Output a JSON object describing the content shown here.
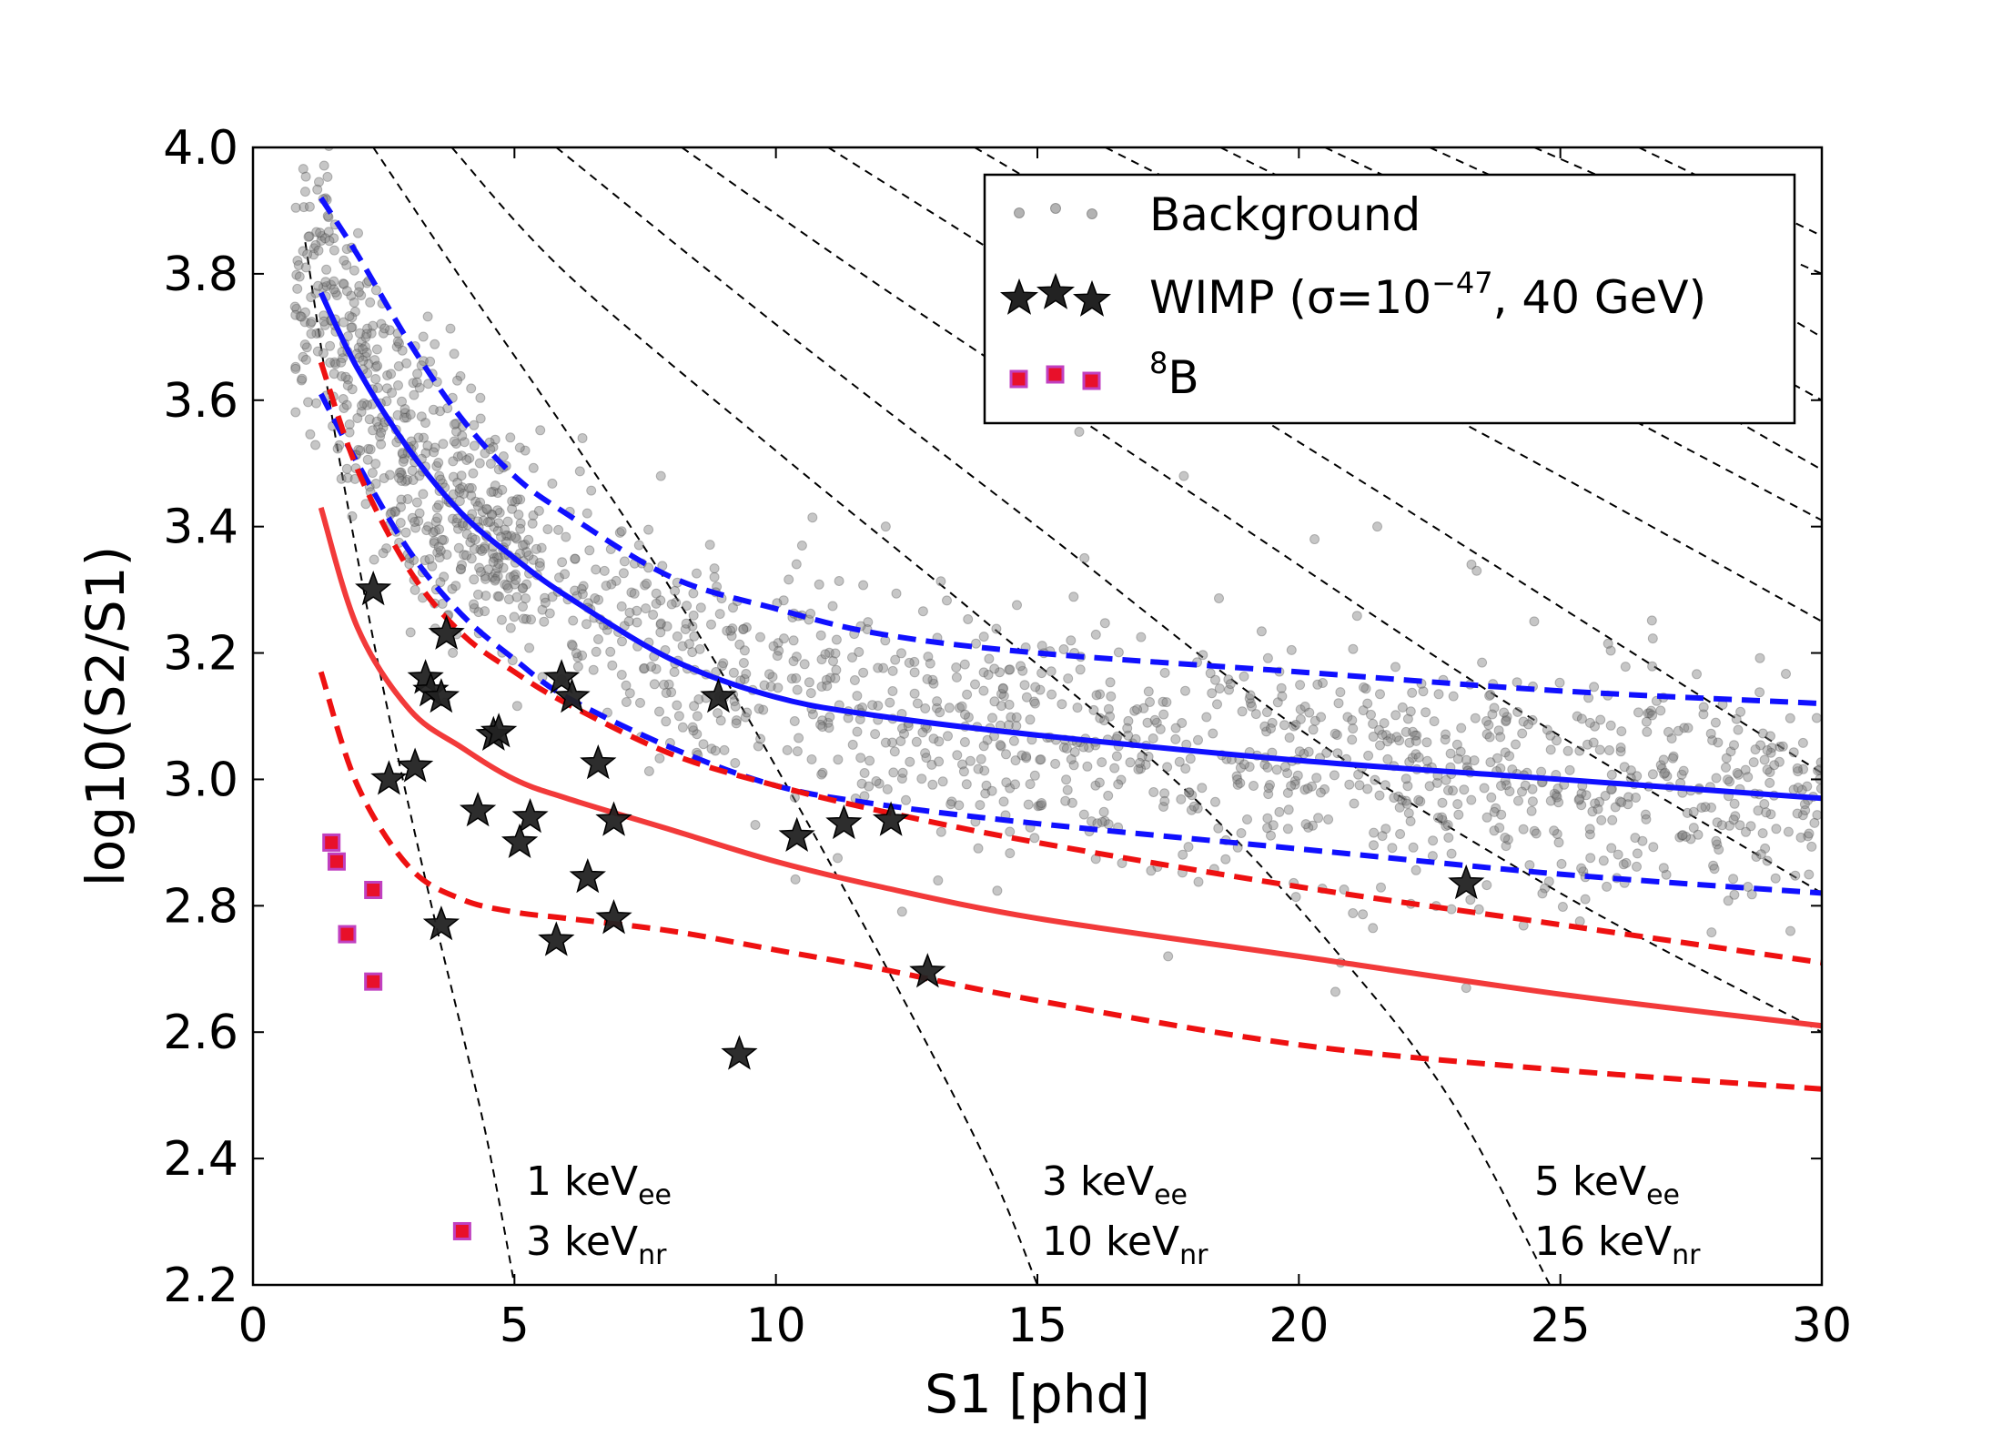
{
  "chart_data": {
    "type": "scatter",
    "xlabel": "S1 [phd]",
    "ylabel": "log10(S2/S1)",
    "xlim": [
      0,
      30
    ],
    "ylim": [
      2.2,
      4.0
    ],
    "x_ticks": [
      0,
      5,
      10,
      15,
      20,
      25,
      30
    ],
    "y_ticks": [
      2.2,
      2.4,
      2.6,
      2.8,
      3.0,
      3.2,
      3.4,
      3.6,
      3.8,
      4.0
    ],
    "x_tick_labels": [
      "0",
      "5",
      "10",
      "15",
      "20",
      "25",
      "30"
    ],
    "y_tick_labels": [
      "2.2",
      "2.4",
      "2.6",
      "2.8",
      "3.0",
      "3.2",
      "3.4",
      "3.6",
      "3.8",
      "4.0"
    ],
    "grid": false,
    "legend": {
      "placement": "top-right",
      "entries": [
        {
          "label": "Background",
          "marker": "circle",
          "color": "#808080"
        },
        {
          "label": "WIMP (σ=10",
          "label_superscript": "−47",
          "label_suffix": ", 40 GeV)",
          "marker": "star",
          "color": "#222222"
        },
        {
          "label": "B",
          "label_presuperscript": "8",
          "marker": "square",
          "color": "#e8102a",
          "edge_color": "#c040c0"
        }
      ]
    },
    "colors": {
      "er_band": "#1010ff",
      "nr_band": "#f23a3a",
      "nr_band_dashed": "#ee1111",
      "contour": "#000000",
      "background_points": "#808080",
      "wimp": "#222222",
      "b8_fill": "#e8102a",
      "b8_edge": "#c040c0"
    },
    "background_generation": {
      "count": 1700,
      "x_range": [
        0.8,
        30
      ],
      "y_spread_sigma": 0.09,
      "note_visible": false
    },
    "series": [
      {
        "name": "ER band median",
        "style": "solid",
        "color": "#1010ff",
        "x": [
          1.3,
          2,
          3,
          4,
          5,
          6,
          8,
          10,
          12,
          15,
          20,
          25,
          30
        ],
        "y": [
          3.77,
          3.65,
          3.52,
          3.42,
          3.35,
          3.29,
          3.19,
          3.13,
          3.1,
          3.07,
          3.03,
          3.0,
          2.97
        ]
      },
      {
        "name": "ER band upper",
        "style": "dashed",
        "color": "#1010ff",
        "x": [
          1.3,
          2,
          3,
          4,
          5,
          6,
          8,
          10,
          12,
          15,
          20,
          25,
          30
        ],
        "y": [
          3.92,
          3.83,
          3.69,
          3.57,
          3.48,
          3.42,
          3.32,
          3.27,
          3.23,
          3.2,
          3.17,
          3.14,
          3.12
        ]
      },
      {
        "name": "ER band lower",
        "style": "dashed",
        "color": "#1010ff",
        "x": [
          1.3,
          2,
          3,
          4,
          5,
          6,
          8,
          10,
          12,
          15,
          20,
          25,
          30
        ],
        "y": [
          3.61,
          3.5,
          3.36,
          3.26,
          3.19,
          3.13,
          3.05,
          2.99,
          2.96,
          2.93,
          2.89,
          2.85,
          2.82
        ]
      },
      {
        "name": "NR band median",
        "style": "solid",
        "color": "#f23a3a",
        "x": [
          1.3,
          2,
          3,
          4,
          5,
          6,
          8,
          10,
          12,
          15,
          20,
          25,
          30
        ],
        "y": [
          3.43,
          3.24,
          3.11,
          3.05,
          3.0,
          2.97,
          2.92,
          2.87,
          2.83,
          2.78,
          2.72,
          2.66,
          2.61
        ]
      },
      {
        "name": "NR band upper",
        "style": "dashed",
        "color": "#ee1111",
        "x": [
          1.3,
          2,
          3,
          4,
          5,
          6,
          8,
          10,
          12,
          15,
          20,
          25,
          30
        ],
        "y": [
          3.66,
          3.49,
          3.33,
          3.23,
          3.17,
          3.12,
          3.04,
          2.99,
          2.95,
          2.9,
          2.83,
          2.77,
          2.71
        ]
      },
      {
        "name": "NR band lower",
        "style": "dashed",
        "color": "#ee1111",
        "x": [
          1.3,
          2,
          3,
          4,
          5,
          6,
          8,
          10,
          12,
          15,
          20,
          25,
          30
        ],
        "y": [
          3.17,
          2.99,
          2.86,
          2.81,
          2.79,
          2.78,
          2.76,
          2.73,
          2.7,
          2.65,
          2.58,
          2.54,
          2.51
        ]
      }
    ],
    "wimp_points": [
      {
        "x": 2.3,
        "y": 3.3
      },
      {
        "x": 3.7,
        "y": 3.23
      },
      {
        "x": 3.3,
        "y": 3.16
      },
      {
        "x": 3.4,
        "y": 3.14
      },
      {
        "x": 3.6,
        "y": 3.13
      },
      {
        "x": 4.6,
        "y": 3.07
      },
      {
        "x": 4.7,
        "y": 3.075
      },
      {
        "x": 5.9,
        "y": 3.16
      },
      {
        "x": 6.1,
        "y": 3.13
      },
      {
        "x": 8.9,
        "y": 3.13
      },
      {
        "x": 2.6,
        "y": 3.0
      },
      {
        "x": 3.1,
        "y": 3.02
      },
      {
        "x": 6.6,
        "y": 3.025
      },
      {
        "x": 4.3,
        "y": 2.95
      },
      {
        "x": 5.3,
        "y": 2.94
      },
      {
        "x": 5.1,
        "y": 2.9
      },
      {
        "x": 6.9,
        "y": 2.935
      },
      {
        "x": 10.4,
        "y": 2.91
      },
      {
        "x": 11.3,
        "y": 2.93
      },
      {
        "x": 12.2,
        "y": 2.935
      },
      {
        "x": 6.4,
        "y": 2.845
      },
      {
        "x": 3.6,
        "y": 2.77
      },
      {
        "x": 5.8,
        "y": 2.745
      },
      {
        "x": 6.9,
        "y": 2.78
      },
      {
        "x": 12.9,
        "y": 2.695
      },
      {
        "x": 9.3,
        "y": 2.565
      },
      {
        "x": 23.2,
        "y": 2.835
      }
    ],
    "b8_points": [
      {
        "x": 1.5,
        "y": 2.9
      },
      {
        "x": 1.6,
        "y": 2.87
      },
      {
        "x": 2.3,
        "y": 2.825
      },
      {
        "x": 1.8,
        "y": 2.755
      },
      {
        "x": 2.3,
        "y": 2.68
      },
      {
        "x": 4.0,
        "y": 2.285
      }
    ],
    "energy_contours": [
      {
        "label_ee_value": "1 keV",
        "label_ee_sub": "ee",
        "label_nr_value": "3 keV",
        "label_nr_sub": "nr",
        "x": [
          1.0,
          1.5,
          2.0,
          2.5,
          3.0,
          3.5,
          4.0,
          4.5,
          5.0
        ],
        "y": [
          3.85,
          3.58,
          3.35,
          3.14,
          2.95,
          2.77,
          2.6,
          2.42,
          2.2
        ]
      },
      {
        "label_ee_value": "3 keV",
        "label_ee_sub": "ee",
        "label_nr_value": "10 keV",
        "label_nr_sub": "nr",
        "x": [
          2.3,
          4,
          6,
          8,
          10,
          12,
          14,
          15
        ],
        "y": [
          4.0,
          3.79,
          3.55,
          3.3,
          3.02,
          2.72,
          2.4,
          2.2
        ]
      },
      {
        "label_ee_value": "5 keV",
        "label_ee_sub": "ee",
        "label_nr_value": "16 keV",
        "label_nr_sub": "nr",
        "x": [
          3.8,
          6,
          10,
          14,
          18,
          21,
          23,
          24.8
        ],
        "y": [
          4.0,
          3.8,
          3.52,
          3.25,
          2.97,
          2.7,
          2.48,
          2.2
        ]
      },
      {
        "x": [
          5.8,
          10,
          15,
          20,
          25,
          30
        ],
        "y": [
          4.0,
          3.72,
          3.4,
          3.08,
          2.82,
          2.6
        ]
      },
      {
        "x": [
          8.2,
          12,
          18,
          24,
          30
        ],
        "y": [
          4.0,
          3.78,
          3.45,
          3.12,
          2.82
        ]
      },
      {
        "x": [
          11,
          16,
          22,
          30
        ],
        "y": [
          4.0,
          3.74,
          3.43,
          3.01
        ]
      },
      {
        "x": [
          13.8,
          19,
          25,
          30
        ],
        "y": [
          4.0,
          3.75,
          3.48,
          3.25
        ]
      },
      {
        "x": [
          16.3,
          22,
          30
        ],
        "y": [
          4.0,
          3.76,
          3.41
        ]
      },
      {
        "x": [
          18.5,
          24,
          30
        ],
        "y": [
          4.0,
          3.77,
          3.49
        ]
      },
      {
        "x": [
          20.5,
          26,
          30
        ],
        "y": [
          4.0,
          3.78,
          3.6
        ]
      },
      {
        "x": [
          22.5,
          28,
          30
        ],
        "y": [
          4.0,
          3.79,
          3.7
        ]
      },
      {
        "x": [
          24.5,
          30
        ],
        "y": [
          4.0,
          3.8
        ]
      },
      {
        "x": [
          26.5,
          30
        ],
        "y": [
          4.0,
          3.86
        ]
      }
    ],
    "background_outliers": [
      {
        "x": 6.3,
        "y": 3.54
      },
      {
        "x": 7.8,
        "y": 3.48
      },
      {
        "x": 10.5,
        "y": 3.37
      },
      {
        "x": 12.1,
        "y": 3.4
      },
      {
        "x": 15.8,
        "y": 3.55
      },
      {
        "x": 17.8,
        "y": 3.48
      },
      {
        "x": 20.3,
        "y": 3.38
      },
      {
        "x": 21.5,
        "y": 3.4
      },
      {
        "x": 23.3,
        "y": 3.34
      },
      {
        "x": 23.4,
        "y": 3.33
      },
      {
        "x": 24.5,
        "y": 3.25
      },
      {
        "x": 15.9,
        "y": 3.35
      },
      {
        "x": 17.5,
        "y": 2.72
      },
      {
        "x": 20.8,
        "y": 2.71
      },
      {
        "x": 23.2,
        "y": 2.67
      },
      {
        "x": 13.1,
        "y": 2.84
      },
      {
        "x": 29.4,
        "y": 2.76
      },
      {
        "x": 1.0,
        "y": 3.93
      }
    ]
  }
}
